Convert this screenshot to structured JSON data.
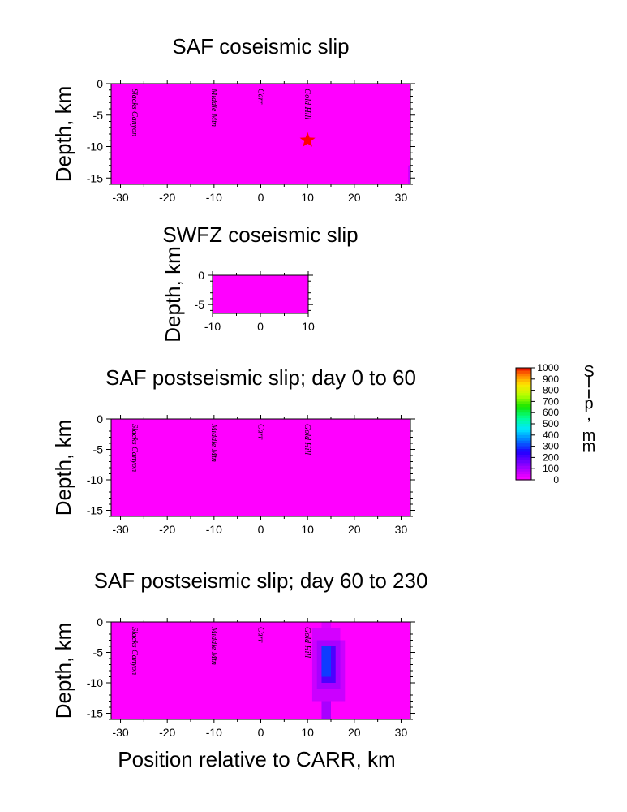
{
  "chart_data": [
    {
      "type": "heatmap",
      "title": "SAF coseismic slip",
      "ylabel": "Depth, km",
      "xlabel": "",
      "xlim": [
        -32,
        32
      ],
      "ylim": [
        -16,
        0
      ],
      "xticks": [
        "-30",
        "-20",
        "-10",
        "0",
        "10",
        "20",
        "30"
      ],
      "yticks": [
        "0",
        "-5",
        "-10",
        "-15"
      ],
      "locations": [
        {
          "name": "Slacks Canyon",
          "x": -27
        },
        {
          "name": "Middle Mtn",
          "x": -10
        },
        {
          "name": "Carr",
          "x": 0
        },
        {
          "name": "Gold Hill",
          "x": 10
        }
      ],
      "background_slip_mm": 0,
      "cells": [
        {
          "x0": 31.5,
          "x1": 32,
          "y0": -16,
          "y1": -13,
          "slip_mm": 60
        }
      ],
      "hypocenter": {
        "x": 10,
        "y": -9,
        "marker": "star",
        "color": "#ff0000"
      }
    },
    {
      "type": "heatmap",
      "title": "SWFZ coseismic slip",
      "ylabel": "Depth, km",
      "xlabel": "",
      "xlim": [
        -10,
        10
      ],
      "ylim": [
        -6.5,
        0
      ],
      "xticks": [
        "-10",
        "0",
        "10"
      ],
      "yticks": [
        "0",
        "-5"
      ],
      "locations": [],
      "background_slip_mm": 0,
      "cells": []
    },
    {
      "type": "heatmap",
      "title": "SAF postseismic slip; day 0 to 60",
      "ylabel": "Depth, km",
      "xlabel": "",
      "xlim": [
        -32,
        32
      ],
      "ylim": [
        -16,
        0
      ],
      "xticks": [
        "-30",
        "-20",
        "-10",
        "0",
        "10",
        "20",
        "30"
      ],
      "yticks": [
        "0",
        "-5",
        "-10",
        "-15"
      ],
      "locations": [
        {
          "name": "Slacks Canyon",
          "x": -27
        },
        {
          "name": "Middle Mtn",
          "x": -10
        },
        {
          "name": "Carr",
          "x": 0
        },
        {
          "name": "Gold Hill",
          "x": 10
        }
      ],
      "background_slip_mm": 0,
      "cells": []
    },
    {
      "type": "heatmap",
      "title": "SAF postseismic slip; day 60 to 230",
      "ylabel": "Depth, km",
      "xlabel": "Position relative to CARR, km",
      "xlim": [
        -32,
        32
      ],
      "ylim": [
        -16,
        0
      ],
      "xticks": [
        "-30",
        "-20",
        "-10",
        "0",
        "10",
        "20",
        "30"
      ],
      "yticks": [
        "0",
        "-5",
        "-10",
        "-15"
      ],
      "locations": [
        {
          "name": "Slacks Canyon",
          "x": -27
        },
        {
          "name": "Middle Mtn",
          "x": -10
        },
        {
          "name": "Carr",
          "x": 0
        },
        {
          "name": "Gold Hill",
          "x": 10
        }
      ],
      "background_slip_mm": 0,
      "cells": [
        {
          "x0": 13,
          "x1": 15,
          "y0": -1,
          "y1": 0,
          "slip_mm": 40
        },
        {
          "x0": 11,
          "x1": 17,
          "y0": -3,
          "y1": -1,
          "slip_mm": 50
        },
        {
          "x0": 11,
          "x1": 18,
          "y0": -13,
          "y1": -3,
          "slip_mm": 60
        },
        {
          "x0": 12,
          "x1": 17,
          "y0": -11,
          "y1": -3,
          "slip_mm": 100
        },
        {
          "x0": 13,
          "x1": 16,
          "y0": -10,
          "y1": -4,
          "slip_mm": 200
        },
        {
          "x0": 13,
          "x1": 15,
          "y0": -9,
          "y1": -4,
          "slip_mm": 300
        },
        {
          "x0": 13,
          "x1": 15,
          "y0": -16,
          "y1": -13,
          "slip_mm": 100
        }
      ]
    }
  ],
  "colorbar": {
    "label": "Slip, mm",
    "ticks": [
      "1000",
      "900",
      "800",
      "700",
      "600",
      "500",
      "400",
      "300",
      "200",
      "100",
      "0"
    ],
    "range": [
      0,
      1000
    ]
  }
}
